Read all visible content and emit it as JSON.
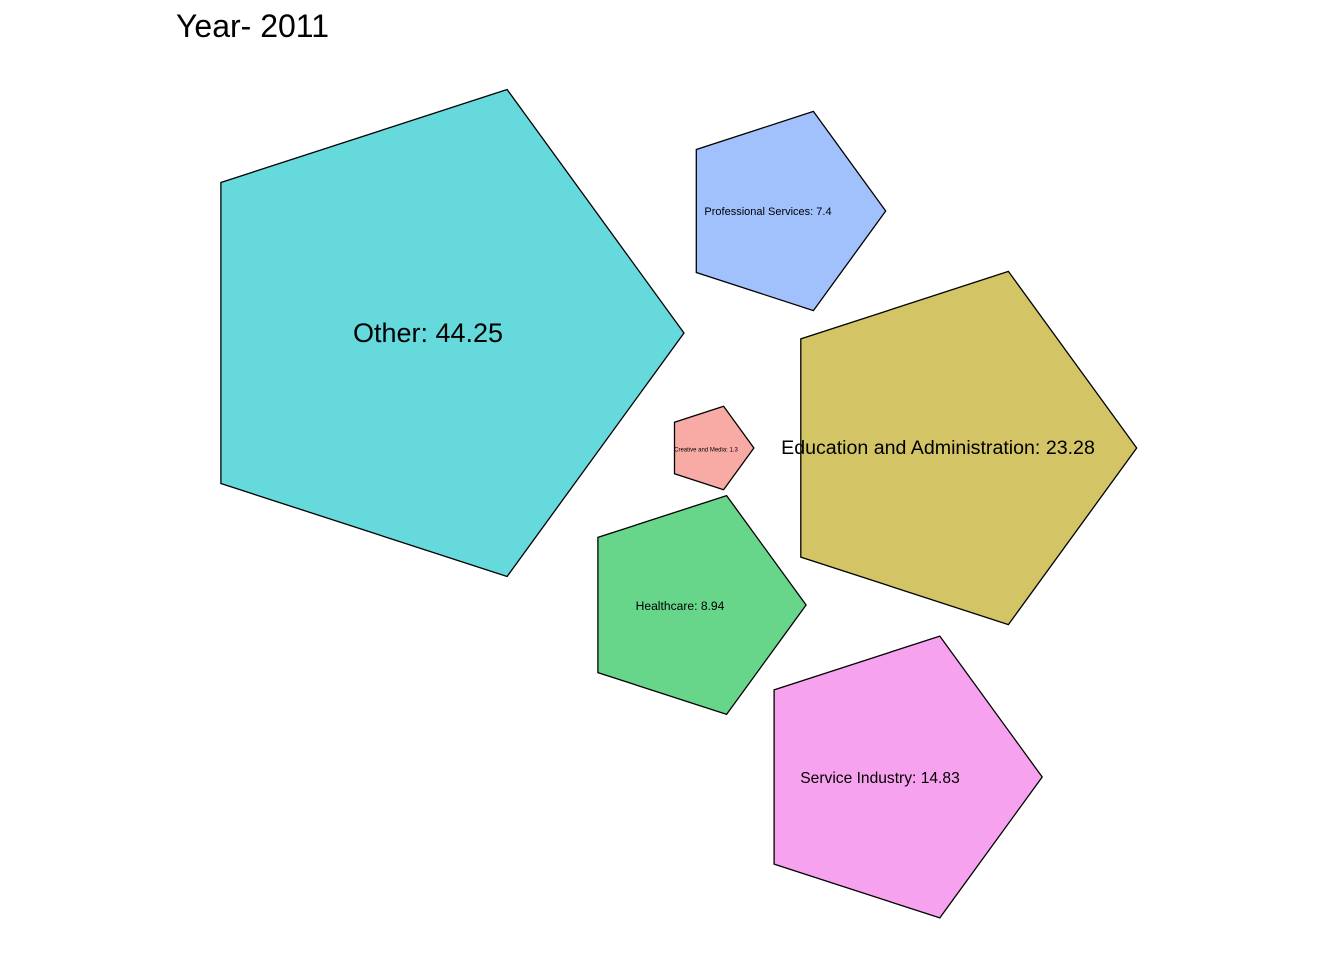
{
  "chart_data": {
    "type": "bubble-pentagon",
    "title": "Year- 2011",
    "legend": "none",
    "grid": false,
    "series": [
      {
        "name": "Other",
        "value": 44.25,
        "label": "Other: 44.25",
        "color": "#66d9dc"
      },
      {
        "name": "Education and Administration",
        "value": 23.28,
        "label": "Education and Administration: 23.28",
        "color": "#d3c466"
      },
      {
        "name": "Service Industry",
        "value": 14.83,
        "label": "Service Industry: 14.83",
        "color": "#f7a2ee"
      },
      {
        "name": "Healthcare",
        "value": 8.94,
        "label": "Healthcare: 8.94",
        "color": "#67d68a"
      },
      {
        "name": "Professional Services",
        "value": 7.4,
        "label": "Professional Services: 7.4",
        "color": "#a1c1fc"
      },
      {
        "name": "Creative and Media",
        "value": 1.3,
        "label": "Creative and Media: 1.3",
        "color": "#f8aba5"
      }
    ]
  }
}
